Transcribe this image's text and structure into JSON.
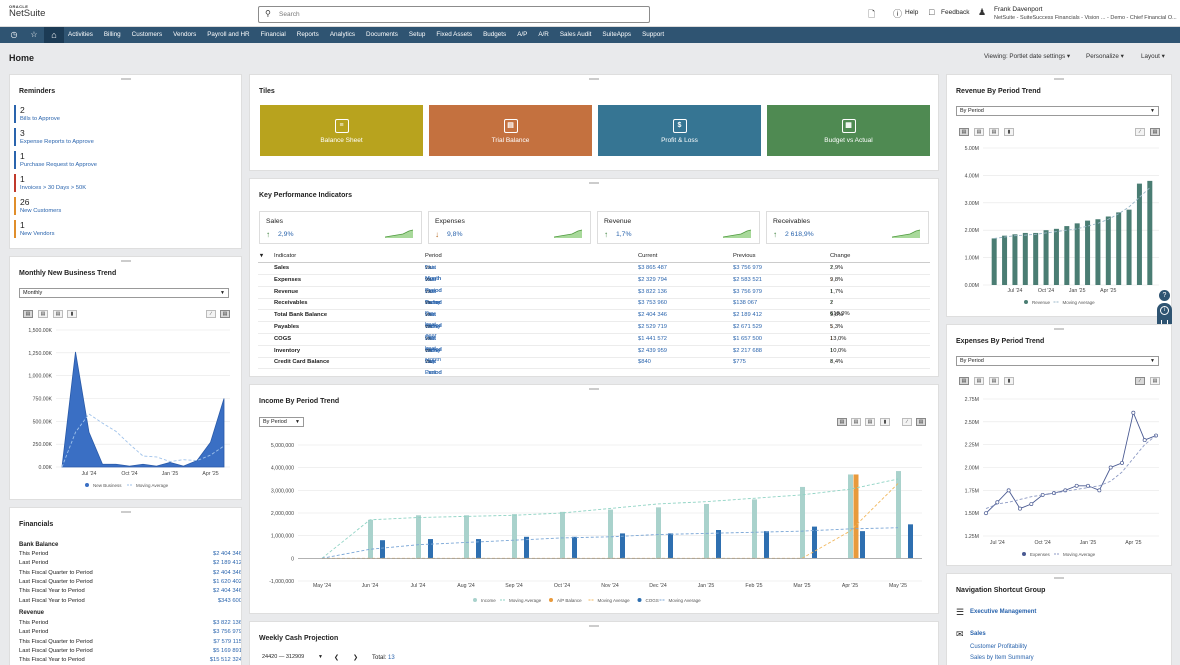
{
  "header": {
    "logo_top": "ORACLE",
    "logo_bottom": "NetSuite",
    "search_placeholder": "Search",
    "help": "Help",
    "feedback": "Feedback",
    "user_name": "Frank Davenport",
    "user_sub": "NetSuite - SuiteSuccess Financials - Vision ... - Demo - Chief Financial O..."
  },
  "nav": [
    "Activities",
    "Billing",
    "Customers",
    "Vendors",
    "Payroll and HR",
    "Financial",
    "Reports",
    "Analytics",
    "Documents",
    "Setup",
    "Fixed Assets",
    "Budgets",
    "A/P",
    "A/R",
    "Sales Audit",
    "SuiteApps",
    "Support"
  ],
  "page": {
    "title": "Home",
    "viewing": "Viewing: Portlet date settings",
    "personalize": "Personalize",
    "layout": "Layout"
  },
  "reminders": {
    "title": "Reminders",
    "items": [
      {
        "count": "2",
        "label": "Bills to Approve",
        "color": "#2a64ad"
      },
      {
        "count": "3",
        "label": "Expense Reports to Approve",
        "color": "#2a64ad"
      },
      {
        "count": "1",
        "label": "Purchase Request to Approve",
        "color": "#2a64ad"
      },
      {
        "count": "1",
        "label": "Invoices > 30 Days > 50K",
        "color": "#c0392b"
      },
      {
        "count": "26",
        "label": "New Customers",
        "color": "#e08e2b"
      },
      {
        "count": "1",
        "label": "New Vendors",
        "color": "#e08e2b"
      }
    ]
  },
  "new_business": {
    "title": "Monthly New Business Trend",
    "select": "Monthly",
    "y_ticks": [
      "1,500.00K",
      "1,250.00K",
      "1,000.00K",
      "750.00K",
      "500.00K",
      "250.00K",
      "0.00K"
    ],
    "x_ticks": [
      "Jul '24",
      "Oct '24",
      "Jan '25",
      "Apr '25"
    ],
    "legend": [
      "New Business",
      "Moving Average"
    ]
  },
  "financials": {
    "title": "Financials",
    "bank_title": "Bank Balance",
    "bank": [
      {
        "label": "This Period",
        "value": "$2 404 346"
      },
      {
        "label": "Last Period",
        "value": "$2 189 412"
      },
      {
        "label": "This Fiscal Quarter to Period",
        "value": "$2 404 346"
      },
      {
        "label": "Last Fiscal Quarter to Period",
        "value": "$1 620 402"
      },
      {
        "label": "This Fiscal Year to Period",
        "value": "$2 404 346"
      },
      {
        "label": "Last Fiscal Year to Period",
        "value": "$343 600"
      }
    ],
    "revenue_title": "Revenue",
    "revenue": [
      {
        "label": "This Period",
        "value": "$3 822 136"
      },
      {
        "label": "Last Period",
        "value": "$3 756 979"
      },
      {
        "label": "This Fiscal Quarter to Period",
        "value": "$7 579 115"
      },
      {
        "label": "Last Fiscal Quarter to Period",
        "value": "$5 169 891"
      },
      {
        "label": "This Fiscal Year to Period",
        "value": "$15 512 324"
      }
    ]
  },
  "tiles": {
    "title": "Tiles",
    "items": [
      {
        "label": "Balance Sheet",
        "color": "#b8a31e",
        "icon": "balance-sheet-icon"
      },
      {
        "label": "Trial Balance",
        "color": "#c4713f",
        "icon": "document-icon"
      },
      {
        "label": "Profit & Loss",
        "color": "#367593",
        "icon": "dollar-icon"
      },
      {
        "label": "Budget vs Actual",
        "color": "#4f8a52",
        "icon": "report-icon"
      }
    ]
  },
  "kpi": {
    "title": "Key Performance Indicators",
    "cards": [
      {
        "name": "Sales",
        "value": "2,9%",
        "dir": "up"
      },
      {
        "name": "Expenses",
        "value": "9,8%",
        "dir": "down"
      },
      {
        "name": "Revenue",
        "value": "1,7%",
        "dir": "up"
      },
      {
        "name": "Receivables",
        "value": "2 618,9%",
        "dir": "up"
      }
    ],
    "headers": [
      "Indicator",
      "Period",
      "Current",
      "Previous",
      "Change"
    ],
    "rows": [
      {
        "ind": "Sales",
        "p1": "This Month",
        "p2": "Last Month",
        "cur": "$3 865 487",
        "prev": "$3 756 979",
        "chg": "2,9%",
        "dir": "up"
      },
      {
        "ind": "Expenses",
        "p1": "This Period",
        "p2": "Last Period",
        "cur": "$2 329 794",
        "prev": "$2 583 521",
        "chg": "9,8%",
        "dir": "down"
      },
      {
        "ind": "Revenue",
        "p1": "This Period",
        "p2": "Last Period",
        "cur": "$3 822 136",
        "prev": "$3 756 979",
        "chg": "1,7%",
        "dir": "up"
      },
      {
        "ind": "Receivables",
        "p1": "Today",
        "p2": "Same Day Last Year",
        "cur": "$3 753 960",
        "prev": "$138 067",
        "chg": "2 618,9%",
        "dir": "up"
      },
      {
        "ind": "Total Bank Balance",
        "p1": "This Period",
        "p2": "Last Period",
        "cur": "$2 404 346",
        "prev": "$2 189 412",
        "chg": "9,8%",
        "dir": "up"
      },
      {
        "ind": "Payables",
        "p1": "Today",
        "p2": "Same Day Last Month",
        "cur": "$2 529 719",
        "prev": "$2 671 529",
        "chg": "5,3%",
        "dir": "down"
      },
      {
        "ind": "COGS",
        "p1": "This Period",
        "p2": "Last Period",
        "cur": "$1 441 572",
        "prev": "$1 657 500",
        "chg": "13,0%",
        "dir": "down"
      },
      {
        "ind": "Inventory",
        "p1": "Today",
        "p2": "Same Day Last Month",
        "cur": "$2 439 959",
        "prev": "$2 217 688",
        "chg": "10,0%",
        "dir": "up"
      },
      {
        "ind": "Credit Card Balance",
        "p1": "This Period",
        "p2": "Last Period",
        "cur": "$840",
        "prev": "$775",
        "chg": "8,4%",
        "dir": "up"
      }
    ],
    "vs": "vs."
  },
  "income": {
    "title": "Income By Period Trend",
    "select": "By Period",
    "y_ticks": [
      "5,000,000",
      "4,000,000",
      "3,000,000",
      "2,000,000",
      "1,000,000",
      "0",
      "-1,000,000"
    ],
    "x_ticks": [
      "May '24",
      "Jun '24",
      "Jul '24",
      "Aug '24",
      "Sep '24",
      "Oct '24",
      "Nov '24",
      "Dec '24",
      "Jan '25",
      "Feb '25",
      "Mar '25",
      "Apr '25",
      "May '25"
    ],
    "legend": [
      "Income",
      "Moving Average",
      "A/P Balance",
      "Moving Average",
      "COGS",
      "Moving Average"
    ]
  },
  "cash": {
    "title": "Weekly Cash Projection",
    "select": "24420 — 312909",
    "total_label": "Total:",
    "total": "13"
  },
  "revenue_trend": {
    "title": "Revenue By Period Trend",
    "select": "By Period",
    "y_ticks": [
      "5.00M",
      "4.00M",
      "3.00M",
      "2.00M",
      "1.00M",
      "0.00M"
    ],
    "x_ticks": [
      "Jul '24",
      "Oct '24",
      "Jan '25",
      "Apr '25"
    ],
    "legend": [
      "Revenue",
      "Moving Average"
    ]
  },
  "expenses_trend": {
    "title": "Expenses By Period Trend",
    "select": "By Period",
    "y_ticks": [
      "2.75M",
      "2.50M",
      "2.25M",
      "2.00M",
      "1.75M",
      "1.50M",
      "1.25M"
    ],
    "x_ticks": [
      "Jul '24",
      "Oct '24",
      "Jan '25",
      "Apr '25"
    ],
    "legend": [
      "Expenses",
      "Moving Average"
    ]
  },
  "shortcuts": {
    "title": "Navigation Shortcut Group",
    "exec": "Executive Management",
    "sales": "Sales",
    "links": [
      "Customer Profitability",
      "Sales by Item Summary"
    ]
  },
  "chart_data": [
    {
      "type": "area",
      "title": "Monthly New Business Trend",
      "series": [
        {
          "name": "New Business",
          "values": [
            0,
            1260,
            380,
            30,
            30,
            10,
            30,
            10,
            50,
            10,
            70,
            270,
            750
          ]
        },
        {
          "name": "Moving Average",
          "values": [
            0,
            380,
            580,
            480,
            390,
            250,
            120,
            110,
            60,
            80,
            70,
            130,
            230
          ]
        }
      ],
      "ylim": [
        0,
        1500
      ],
      "units": "K"
    },
    {
      "type": "bar",
      "title": "Income By Period Trend",
      "categories": [
        "May '24",
        "Jun '24",
        "Jul '24",
        "Aug '24",
        "Sep '24",
        "Oct '24",
        "Nov '24",
        "Dec '24",
        "Jan '25",
        "Feb '25",
        "Mar '25",
        "Apr '25",
        "May '25"
      ],
      "series": [
        {
          "name": "Income",
          "values": [
            0,
            1700,
            1900,
            1900,
            1950,
            2050,
            2150,
            2250,
            2400,
            2600,
            3150,
            3700,
            3850
          ]
        },
        {
          "name": "A/P Balance",
          "values": [
            0,
            0,
            0,
            0,
            0,
            0,
            0,
            0,
            0,
            0,
            0,
            3700,
            0
          ]
        },
        {
          "name": "COGS",
          "values": [
            0,
            800,
            850,
            850,
            950,
            950,
            1100,
            1100,
            1250,
            1200,
            1400,
            1200,
            1500
          ]
        },
        {
          "name": "Income Moving Average",
          "values": [
            0,
            1700,
            1800,
            1850,
            1900,
            2000,
            2200,
            2400,
            2500,
            2650,
            2800,
            3050,
            3500
          ]
        },
        {
          "name": "A/P Moving Average",
          "values": [
            0,
            0,
            0,
            0,
            0,
            0,
            0,
            0,
            0,
            0,
            0,
            1200,
            3300
          ]
        },
        {
          "name": "COGS Moving Average",
          "values": [
            0,
            400,
            600,
            700,
            800,
            900,
            950,
            1050,
            1100,
            1150,
            1200,
            1300,
            1350
          ]
        }
      ],
      "units": "thousands",
      "ylim": [
        -1000,
        5000
      ]
    },
    {
      "type": "bar",
      "title": "Revenue By Period Trend",
      "series": [
        {
          "name": "Revenue",
          "values": [
            1.7,
            1.8,
            1.85,
            1.9,
            1.9,
            2.0,
            2.05,
            2.15,
            2.25,
            2.35,
            2.4,
            2.5,
            2.65,
            2.75,
            3.7,
            3.8
          ]
        },
        {
          "name": "Moving Average",
          "values": [
            1.7,
            1.75,
            1.8,
            1.82,
            1.85,
            1.9,
            1.95,
            2.0,
            2.05,
            2.15,
            2.25,
            2.4,
            2.6,
            2.85,
            3.2,
            3.55
          ]
        }
      ],
      "ylim": [
        0,
        5
      ],
      "units": "M"
    },
    {
      "type": "line",
      "title": "Expenses By Period Trend",
      "series": [
        {
          "name": "Expenses",
          "values": [
            1.5,
            1.62,
            1.75,
            1.55,
            1.6,
            1.7,
            1.72,
            1.75,
            1.8,
            1.8,
            1.75,
            2.0,
            2.05,
            2.6,
            2.3,
            2.35
          ]
        },
        {
          "name": "Moving Average",
          "values": [
            1.55,
            1.6,
            1.62,
            1.65,
            1.68,
            1.7,
            1.72,
            1.74,
            1.76,
            1.78,
            1.8,
            1.85,
            1.95,
            2.1,
            2.25,
            2.35
          ]
        }
      ],
      "ylim": [
        1.25,
        2.75
      ],
      "units": "M"
    }
  ]
}
